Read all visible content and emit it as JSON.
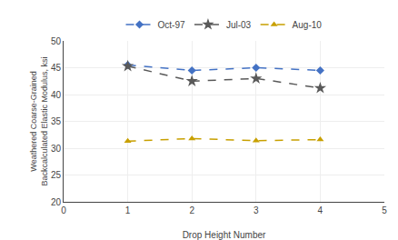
{
  "chart_data": {
    "type": "line",
    "x": [
      1,
      2,
      3,
      4
    ],
    "series": [
      {
        "name": "Oct-97",
        "color": "#4472C4",
        "marker": "diamond",
        "line_style": "dashed",
        "values": [
          45.5,
          44.5,
          45.0,
          44.5
        ]
      },
      {
        "name": "Jul-03",
        "color": "#595959",
        "marker": "star",
        "line_style": "dashed",
        "values": [
          45.3,
          42.5,
          43.0,
          41.2
        ]
      },
      {
        "name": "Aug-10",
        "color": "#C8A000",
        "marker": "triangle-up",
        "line_style": "dashed",
        "values": [
          31.3,
          31.8,
          31.4,
          31.6
        ]
      }
    ],
    "xlabel": "Drop Height Number",
    "ylabel": "Weathered Coarse-Grained\nBackcalculated Elastic Modulus, ksi",
    "xlim": [
      0,
      5
    ],
    "ylim": [
      20,
      50
    ],
    "xticks": [
      0,
      1,
      2,
      3,
      4,
      5
    ],
    "yticks": [
      20,
      25,
      30,
      35,
      40,
      45,
      50
    ],
    "grid": true,
    "legend": "top"
  }
}
